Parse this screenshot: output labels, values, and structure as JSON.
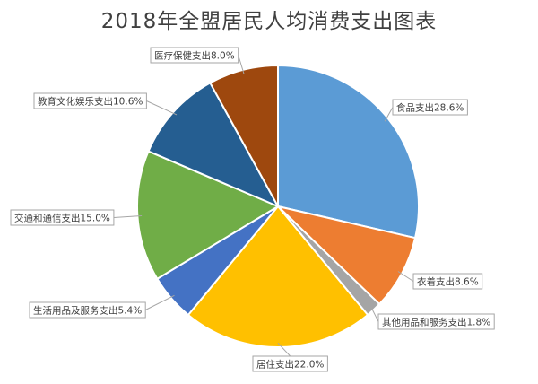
{
  "chart_data": {
    "type": "pie",
    "title": "2018年全盟居民人均消费支出图表",
    "start_angle_deg": 0,
    "direction": "clockwise",
    "slices": [
      {
        "label": "食品支出28.6%",
        "value": 28.6,
        "color": "#5b9bd5"
      },
      {
        "label": "衣着支出8.6%",
        "value": 8.6,
        "color": "#ed7d31"
      },
      {
        "label": "其他用品和服务支出1.8%",
        "value": 1.8,
        "color": "#a5a5a5"
      },
      {
        "label": "居住支出22.0%",
        "value": 22.0,
        "color": "#ffc000"
      },
      {
        "label": "生活用品及服务支出5.4%",
        "value": 5.4,
        "color": "#4472c4"
      },
      {
        "label": "交通和通信支出15.0%",
        "value": 15.0,
        "color": "#70ad47"
      },
      {
        "label": "教育文化娱乐支出10.6%",
        "value": 10.6,
        "color": "#255e91"
      },
      {
        "label": "医疗保健支出8.0%",
        "value": 8.0,
        "color": "#9e480e"
      }
    ],
    "legend": "none",
    "data_labels": "callout boxes with leader lines"
  }
}
